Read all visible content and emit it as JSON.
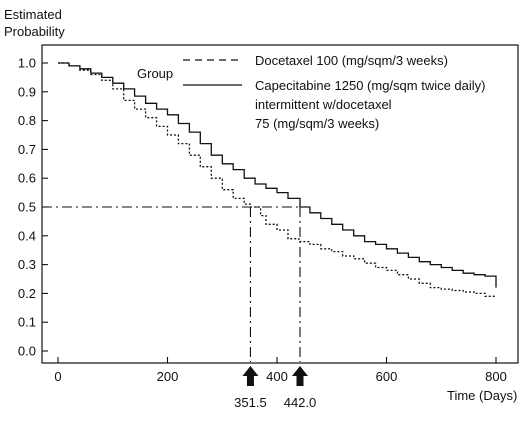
{
  "chart_data": {
    "type": "line",
    "title": "",
    "ylabel_lines": [
      "Estimated",
      "Probability"
    ],
    "xlabel": "Time (Days)",
    "xlim": [
      -10,
      820
    ],
    "ylim": [
      0,
      1.05
    ],
    "xticks": [
      0,
      200,
      400,
      600,
      800
    ],
    "yticks": [
      0.0,
      0.1,
      0.2,
      0.3,
      0.4,
      0.5,
      0.6,
      0.7,
      0.8,
      0.9,
      1.0
    ],
    "ytick_labels": [
      "0.0",
      "0.1",
      "0.2",
      "0.3",
      "0.4",
      "0.5",
      "0.6",
      "0.7",
      "0.8",
      "0.9",
      "1.0"
    ],
    "legend": {
      "title": "Group",
      "entries": [
        {
          "series": 0,
          "lines": [
            "Docetaxel 100 (mg/sqm/3 weeks)"
          ]
        },
        {
          "series": 1,
          "lines": [
            "Capecitabine 1250 (mg/sqm twice daily)",
            "intermittent w/docetaxel",
            "75 (mg/sqm/3 weeks)"
          ]
        }
      ]
    },
    "reference": {
      "y": 0.5,
      "medians": [
        351.5,
        442.0
      ],
      "median_labels": [
        "351.5",
        "442.0"
      ]
    },
    "series": [
      {
        "name": "Docetaxel 100 (mg/sqm/3 weeks)",
        "style": "dashed",
        "color": "#111111",
        "points": [
          [
            0,
            1.0
          ],
          [
            20,
            0.99
          ],
          [
            40,
            0.975
          ],
          [
            60,
            0.96
          ],
          [
            80,
            0.94
          ],
          [
            100,
            0.91
          ],
          [
            120,
            0.87
          ],
          [
            140,
            0.84
          ],
          [
            160,
            0.81
          ],
          [
            180,
            0.78
          ],
          [
            200,
            0.75
          ],
          [
            220,
            0.72
          ],
          [
            240,
            0.68
          ],
          [
            260,
            0.64
          ],
          [
            280,
            0.6
          ],
          [
            300,
            0.56
          ],
          [
            320,
            0.53
          ],
          [
            340,
            0.51
          ],
          [
            351.5,
            0.5
          ],
          [
            370,
            0.47
          ],
          [
            380,
            0.44
          ],
          [
            400,
            0.42
          ],
          [
            420,
            0.39
          ],
          [
            440,
            0.38
          ],
          [
            460,
            0.37
          ],
          [
            480,
            0.355
          ],
          [
            500,
            0.345
          ],
          [
            520,
            0.33
          ],
          [
            540,
            0.32
          ],
          [
            560,
            0.305
          ],
          [
            580,
            0.29
          ],
          [
            600,
            0.28
          ],
          [
            620,
            0.265
          ],
          [
            640,
            0.25
          ],
          [
            660,
            0.235
          ],
          [
            680,
            0.22
          ],
          [
            700,
            0.215
          ],
          [
            720,
            0.21
          ],
          [
            740,
            0.205
          ],
          [
            760,
            0.2
          ],
          [
            780,
            0.19
          ],
          [
            800,
            0.19
          ]
        ]
      },
      {
        "name": "Capecitabine 1250 (mg/sqm twice daily) intermittent w/docetaxel 75 (mg/sqm/3 weeks)",
        "style": "solid",
        "color": "#111111",
        "points": [
          [
            0,
            1.0
          ],
          [
            20,
            0.99
          ],
          [
            40,
            0.98
          ],
          [
            60,
            0.965
          ],
          [
            80,
            0.95
          ],
          [
            100,
            0.93
          ],
          [
            120,
            0.91
          ],
          [
            140,
            0.885
          ],
          [
            160,
            0.86
          ],
          [
            180,
            0.84
          ],
          [
            200,
            0.82
          ],
          [
            220,
            0.79
          ],
          [
            240,
            0.76
          ],
          [
            260,
            0.72
          ],
          [
            280,
            0.68
          ],
          [
            300,
            0.65
          ],
          [
            320,
            0.63
          ],
          [
            340,
            0.6
          ],
          [
            360,
            0.58
          ],
          [
            380,
            0.565
          ],
          [
            400,
            0.55
          ],
          [
            420,
            0.53
          ],
          [
            442,
            0.5
          ],
          [
            460,
            0.48
          ],
          [
            480,
            0.46
          ],
          [
            500,
            0.44
          ],
          [
            520,
            0.42
          ],
          [
            540,
            0.4
          ],
          [
            560,
            0.38
          ],
          [
            580,
            0.37
          ],
          [
            600,
            0.355
          ],
          [
            620,
            0.34
          ],
          [
            640,
            0.325
          ],
          [
            660,
            0.31
          ],
          [
            680,
            0.3
          ],
          [
            700,
            0.29
          ],
          [
            720,
            0.28
          ],
          [
            740,
            0.27
          ],
          [
            760,
            0.265
          ],
          [
            780,
            0.26
          ],
          [
            800,
            0.22
          ]
        ]
      }
    ]
  }
}
